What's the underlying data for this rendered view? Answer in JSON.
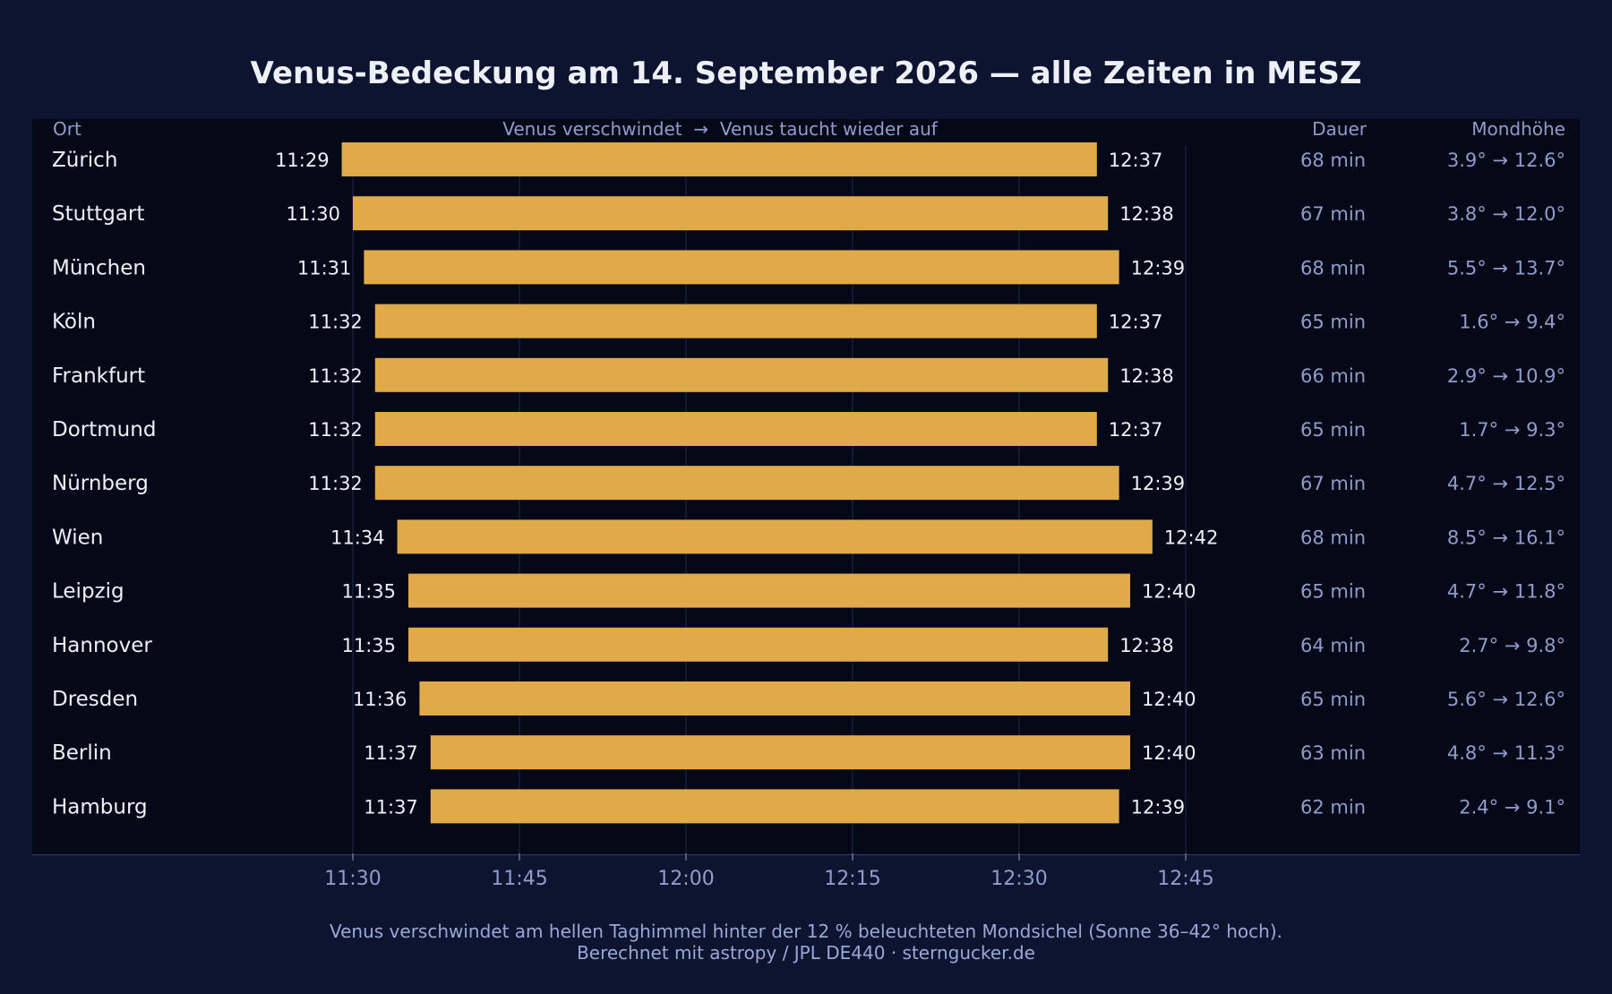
{
  "chart_data": {
    "type": "bar",
    "title": "Venus-Bedeckung am 14. September 2026 — alle Zeiten in MESZ",
    "column_headers": {
      "place": "Ort",
      "bars": "Venus verschwindet  →  Venus taucht wieder auf",
      "duration": "Dauer",
      "moon_altitude": "Mondhöhe"
    },
    "x_ticks": [
      "11:30",
      "11:45",
      "12:00",
      "12:15",
      "12:30",
      "12:45"
    ],
    "xlim": [
      "11:26",
      "13:00"
    ],
    "grid": true,
    "bar_color": "#dfaa47",
    "rows": [
      {
        "place": "Zürich",
        "start": "11:29",
        "end": "12:37",
        "duration": "68 min",
        "altitude": "3.9° → 12.6°"
      },
      {
        "place": "Stuttgart",
        "start": "11:30",
        "end": "12:38",
        "duration": "67 min",
        "altitude": "3.8° → 12.0°"
      },
      {
        "place": "München",
        "start": "11:31",
        "end": "12:39",
        "duration": "68 min",
        "altitude": "5.5° → 13.7°"
      },
      {
        "place": "Köln",
        "start": "11:32",
        "end": "12:37",
        "duration": "65 min",
        "altitude": "1.6° → 9.4°"
      },
      {
        "place": "Frankfurt",
        "start": "11:32",
        "end": "12:38",
        "duration": "66 min",
        "altitude": "2.9° → 10.9°"
      },
      {
        "place": "Dortmund",
        "start": "11:32",
        "end": "12:37",
        "duration": "65 min",
        "altitude": "1.7° → 9.3°"
      },
      {
        "place": "Nürnberg",
        "start": "11:32",
        "end": "12:39",
        "duration": "67 min",
        "altitude": "4.7° → 12.5°"
      },
      {
        "place": "Wien",
        "start": "11:34",
        "end": "12:42",
        "duration": "68 min",
        "altitude": "8.5° → 16.1°"
      },
      {
        "place": "Leipzig",
        "start": "11:35",
        "end": "12:40",
        "duration": "65 min",
        "altitude": "4.7° → 11.8°"
      },
      {
        "place": "Hannover",
        "start": "11:35",
        "end": "12:38",
        "duration": "64 min",
        "altitude": "2.7° → 9.8°"
      },
      {
        "place": "Dresden",
        "start": "11:36",
        "end": "12:40",
        "duration": "65 min",
        "altitude": "5.6° → 12.6°"
      },
      {
        "place": "Berlin",
        "start": "11:37",
        "end": "12:40",
        "duration": "63 min",
        "altitude": "4.8° → 11.3°"
      },
      {
        "place": "Hamburg",
        "start": "11:37",
        "end": "12:39",
        "duration": "62 min",
        "altitude": "2.4° → 9.1°"
      }
    ]
  },
  "footer": {
    "line1": "Venus verschwindet am hellen Taghimmel hinter der 12 % beleuchteten Mondsichel (Sonne 36–42° hoch).",
    "line2": "Berechnet mit astropy / JPL DE440 · sterngucker.de"
  }
}
